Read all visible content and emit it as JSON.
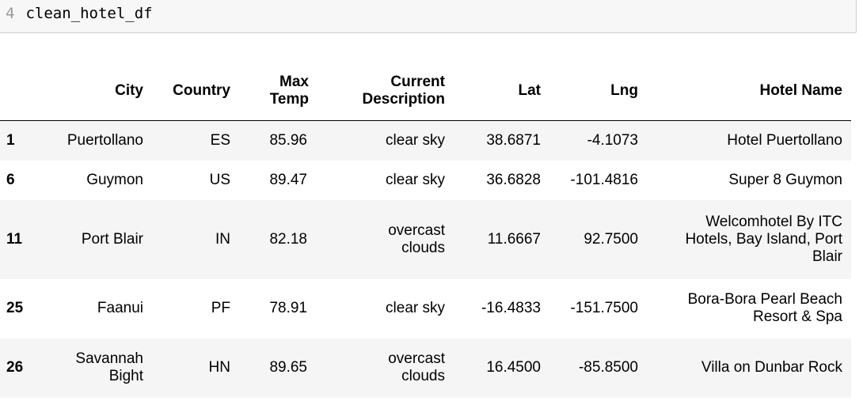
{
  "code_cell": {
    "line_number": "4",
    "code": "clean_hotel_df"
  },
  "table": {
    "columns": [
      "",
      "City",
      "Country",
      "Max Temp",
      "Current Description",
      "Lat",
      "Lng",
      "Hotel Name"
    ],
    "rows": [
      {
        "index": "1",
        "city": "Puertollano",
        "country": "ES",
        "max_temp": "85.96",
        "description": "clear sky",
        "lat": "38.6871",
        "lng": "-4.1073",
        "hotel": "Hotel Puertollano"
      },
      {
        "index": "6",
        "city": "Guymon",
        "country": "US",
        "max_temp": "89.47",
        "description": "clear sky",
        "lat": "36.6828",
        "lng": "-101.4816",
        "hotel": "Super 8 Guymon"
      },
      {
        "index": "11",
        "city": "Port Blair",
        "country": "IN",
        "max_temp": "82.18",
        "description": "overcast clouds",
        "lat": "11.6667",
        "lng": "92.7500",
        "hotel": "Welcomhotel By ITC Hotels, Bay Island, Port Blair"
      },
      {
        "index": "25",
        "city": "Faanui",
        "country": "PF",
        "max_temp": "78.91",
        "description": "clear sky",
        "lat": "-16.4833",
        "lng": "-151.7500",
        "hotel": "Bora-Bora Pearl Beach Resort & Spa"
      },
      {
        "index": "26",
        "city": "Savannah Bight",
        "country": "HN",
        "max_temp": "89.65",
        "description": "overcast clouds",
        "lat": "16.4500",
        "lng": "-85.8500",
        "hotel": "Villa on Dunbar Rock"
      }
    ]
  }
}
